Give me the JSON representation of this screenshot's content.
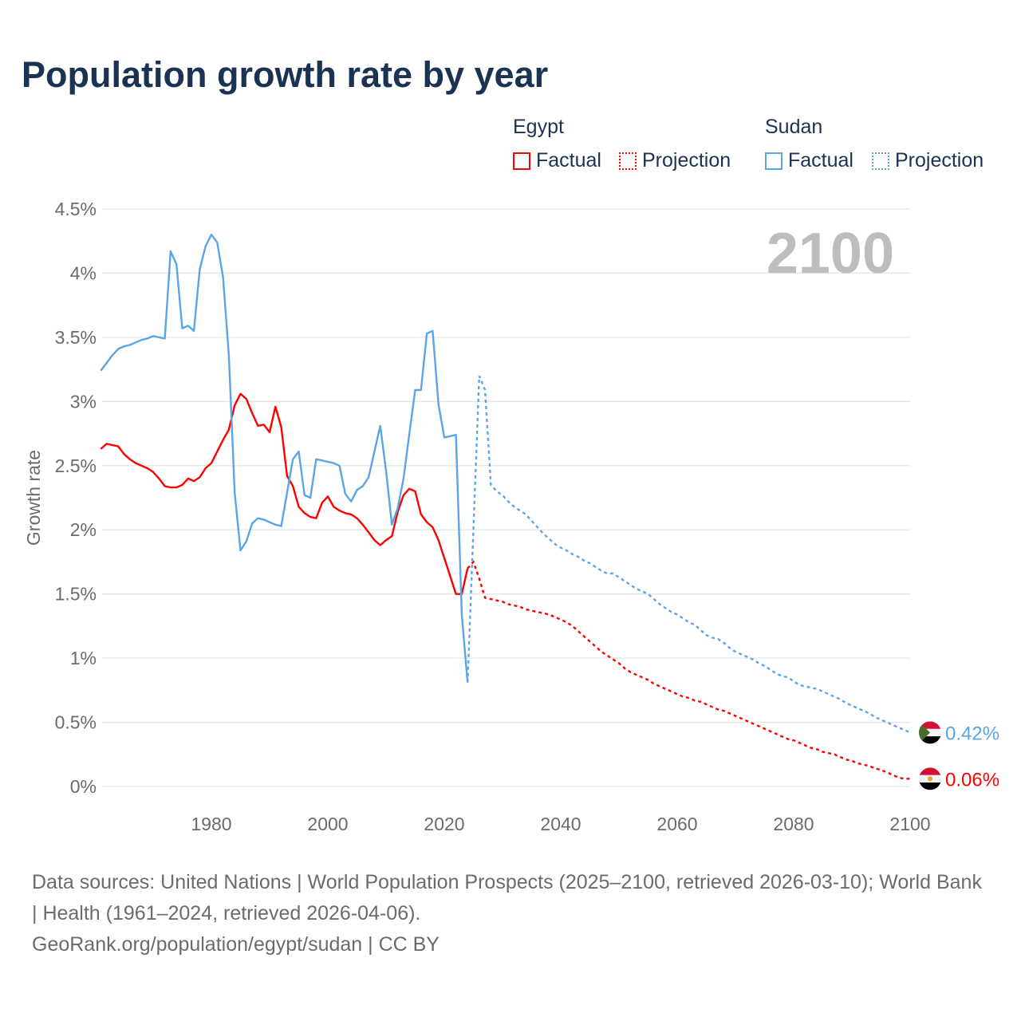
{
  "chart_data": {
    "type": "line",
    "title": "Population growth rate by year",
    "xlabel": "",
    "ylabel": "Growth rate",
    "xlim": [
      1961,
      2100
    ],
    "ylim": [
      0,
      4.5
    ],
    "x_ticks": [
      1980,
      2000,
      2020,
      2040,
      2060,
      2080,
      2100
    ],
    "x_tick_labels": [
      "1980",
      "2000",
      "2020",
      "2040",
      "2060",
      "2080",
      "2100"
    ],
    "y_ticks": [
      0,
      0.5,
      1,
      1.5,
      2,
      2.5,
      3,
      3.5,
      4,
      4.5
    ],
    "y_tick_labels": [
      "0%",
      "0.5%",
      "1%",
      "1.5%",
      "2%",
      "2.5%",
      "3%",
      "3.5%",
      "4%",
      "4.5%"
    ],
    "grid": true,
    "year_watermark": "2100",
    "legend": {
      "placement": "top-right",
      "groups": [
        {
          "name": "Egypt",
          "factual": "Factual",
          "projection": "Projection"
        },
        {
          "name": "Sudan",
          "factual": "Factual",
          "projection": "Projection"
        }
      ]
    },
    "series": [
      {
        "name": "Egypt",
        "color": "#ff0000",
        "end_label": "0.06%",
        "factual_start": 1961,
        "factual": [
          2.63,
          2.67,
          2.66,
          2.65,
          2.59,
          2.55,
          2.52,
          2.5,
          2.48,
          2.45,
          2.4,
          2.34,
          2.33,
          2.33,
          2.35,
          2.4,
          2.38,
          2.41,
          2.48,
          2.52,
          2.61,
          2.7,
          2.78,
          2.97,
          3.06,
          3.02,
          2.91,
          2.81,
          2.82,
          2.76,
          2.96,
          2.8,
          2.42,
          2.34,
          2.18,
          2.13,
          2.1,
          2.09,
          2.21,
          2.26,
          2.18,
          2.15,
          2.13,
          2.12,
          2.09,
          2.04,
          1.98,
          1.92,
          1.88,
          1.92,
          1.95,
          2.14,
          2.27,
          2.32,
          2.3,
          2.12,
          2.06,
          2.02,
          1.92,
          1.78,
          1.64,
          1.5,
          1.5,
          1.7
        ],
        "projection_start": 2024,
        "projection": [
          1.7,
          1.75,
          1.62,
          1.47,
          1.46,
          1.45,
          1.44,
          1.42,
          1.41,
          1.4,
          1.38,
          1.37,
          1.36,
          1.35,
          1.34,
          1.32,
          1.3,
          1.28,
          1.25,
          1.21,
          1.17,
          1.13,
          1.09,
          1.05,
          1.02,
          0.99,
          0.96,
          0.92,
          0.89,
          0.87,
          0.85,
          0.83,
          0.8,
          0.78,
          0.76,
          0.74,
          0.72,
          0.7,
          0.69,
          0.67,
          0.66,
          0.64,
          0.62,
          0.6,
          0.59,
          0.57,
          0.55,
          0.53,
          0.51,
          0.49,
          0.47,
          0.45,
          0.43,
          0.41,
          0.39,
          0.37,
          0.36,
          0.34,
          0.32,
          0.3,
          0.29,
          0.27,
          0.26,
          0.25,
          0.23,
          0.21,
          0.2,
          0.18,
          0.17,
          0.16,
          0.14,
          0.13,
          0.11,
          0.09,
          0.07,
          0.06,
          0.06
        ]
      },
      {
        "name": "Sudan",
        "color": "#5ba4e8",
        "end_label": "0.42%",
        "factual_start": 1961,
        "factual": [
          3.24,
          3.3,
          3.36,
          3.41,
          3.43,
          3.44,
          3.46,
          3.48,
          3.49,
          3.51,
          3.5,
          3.49,
          4.17,
          4.07,
          3.57,
          3.59,
          3.55,
          4.03,
          4.21,
          4.3,
          4.24,
          3.97,
          3.36,
          2.29,
          1.84,
          1.91,
          2.05,
          2.09,
          2.08,
          2.06,
          2.04,
          2.03,
          2.29,
          2.55,
          2.61,
          2.27,
          2.25,
          2.55,
          2.54,
          2.53,
          2.52,
          2.5,
          2.28,
          2.22,
          2.31,
          2.34,
          2.41,
          2.61,
          2.81,
          2.46,
          2.04,
          2.17,
          2.4,
          2.75,
          3.09,
          3.09,
          3.53,
          3.55,
          2.98,
          2.72,
          2.73,
          2.74,
          1.34,
          0.81
        ],
        "projection_start": 2024,
        "projection": [
          0.81,
          2.0,
          3.2,
          3.09,
          2.35,
          2.3,
          2.27,
          2.22,
          2.18,
          2.15,
          2.12,
          2.07,
          2.02,
          1.97,
          1.93,
          1.89,
          1.86,
          1.84,
          1.81,
          1.79,
          1.76,
          1.74,
          1.71,
          1.68,
          1.66,
          1.66,
          1.63,
          1.6,
          1.57,
          1.54,
          1.52,
          1.5,
          1.46,
          1.42,
          1.39,
          1.36,
          1.34,
          1.31,
          1.28,
          1.26,
          1.22,
          1.18,
          1.16,
          1.15,
          1.12,
          1.08,
          1.05,
          1.03,
          1.01,
          0.99,
          0.96,
          0.94,
          0.91,
          0.88,
          0.86,
          0.85,
          0.82,
          0.79,
          0.78,
          0.77,
          0.76,
          0.74,
          0.72,
          0.7,
          0.68,
          0.65,
          0.63,
          0.61,
          0.59,
          0.57,
          0.54,
          0.52,
          0.5,
          0.48,
          0.46,
          0.44,
          0.42
        ]
      }
    ]
  },
  "footer": {
    "sources": "Data sources: United Nations | World Population Prospects (2025–2100, retrieved 2026-03-10); World Bank | Health (1961–2024, retrieved 2026-04-06).",
    "attribution": "GeoRank.org/population/egypt/sudan | CC BY"
  }
}
